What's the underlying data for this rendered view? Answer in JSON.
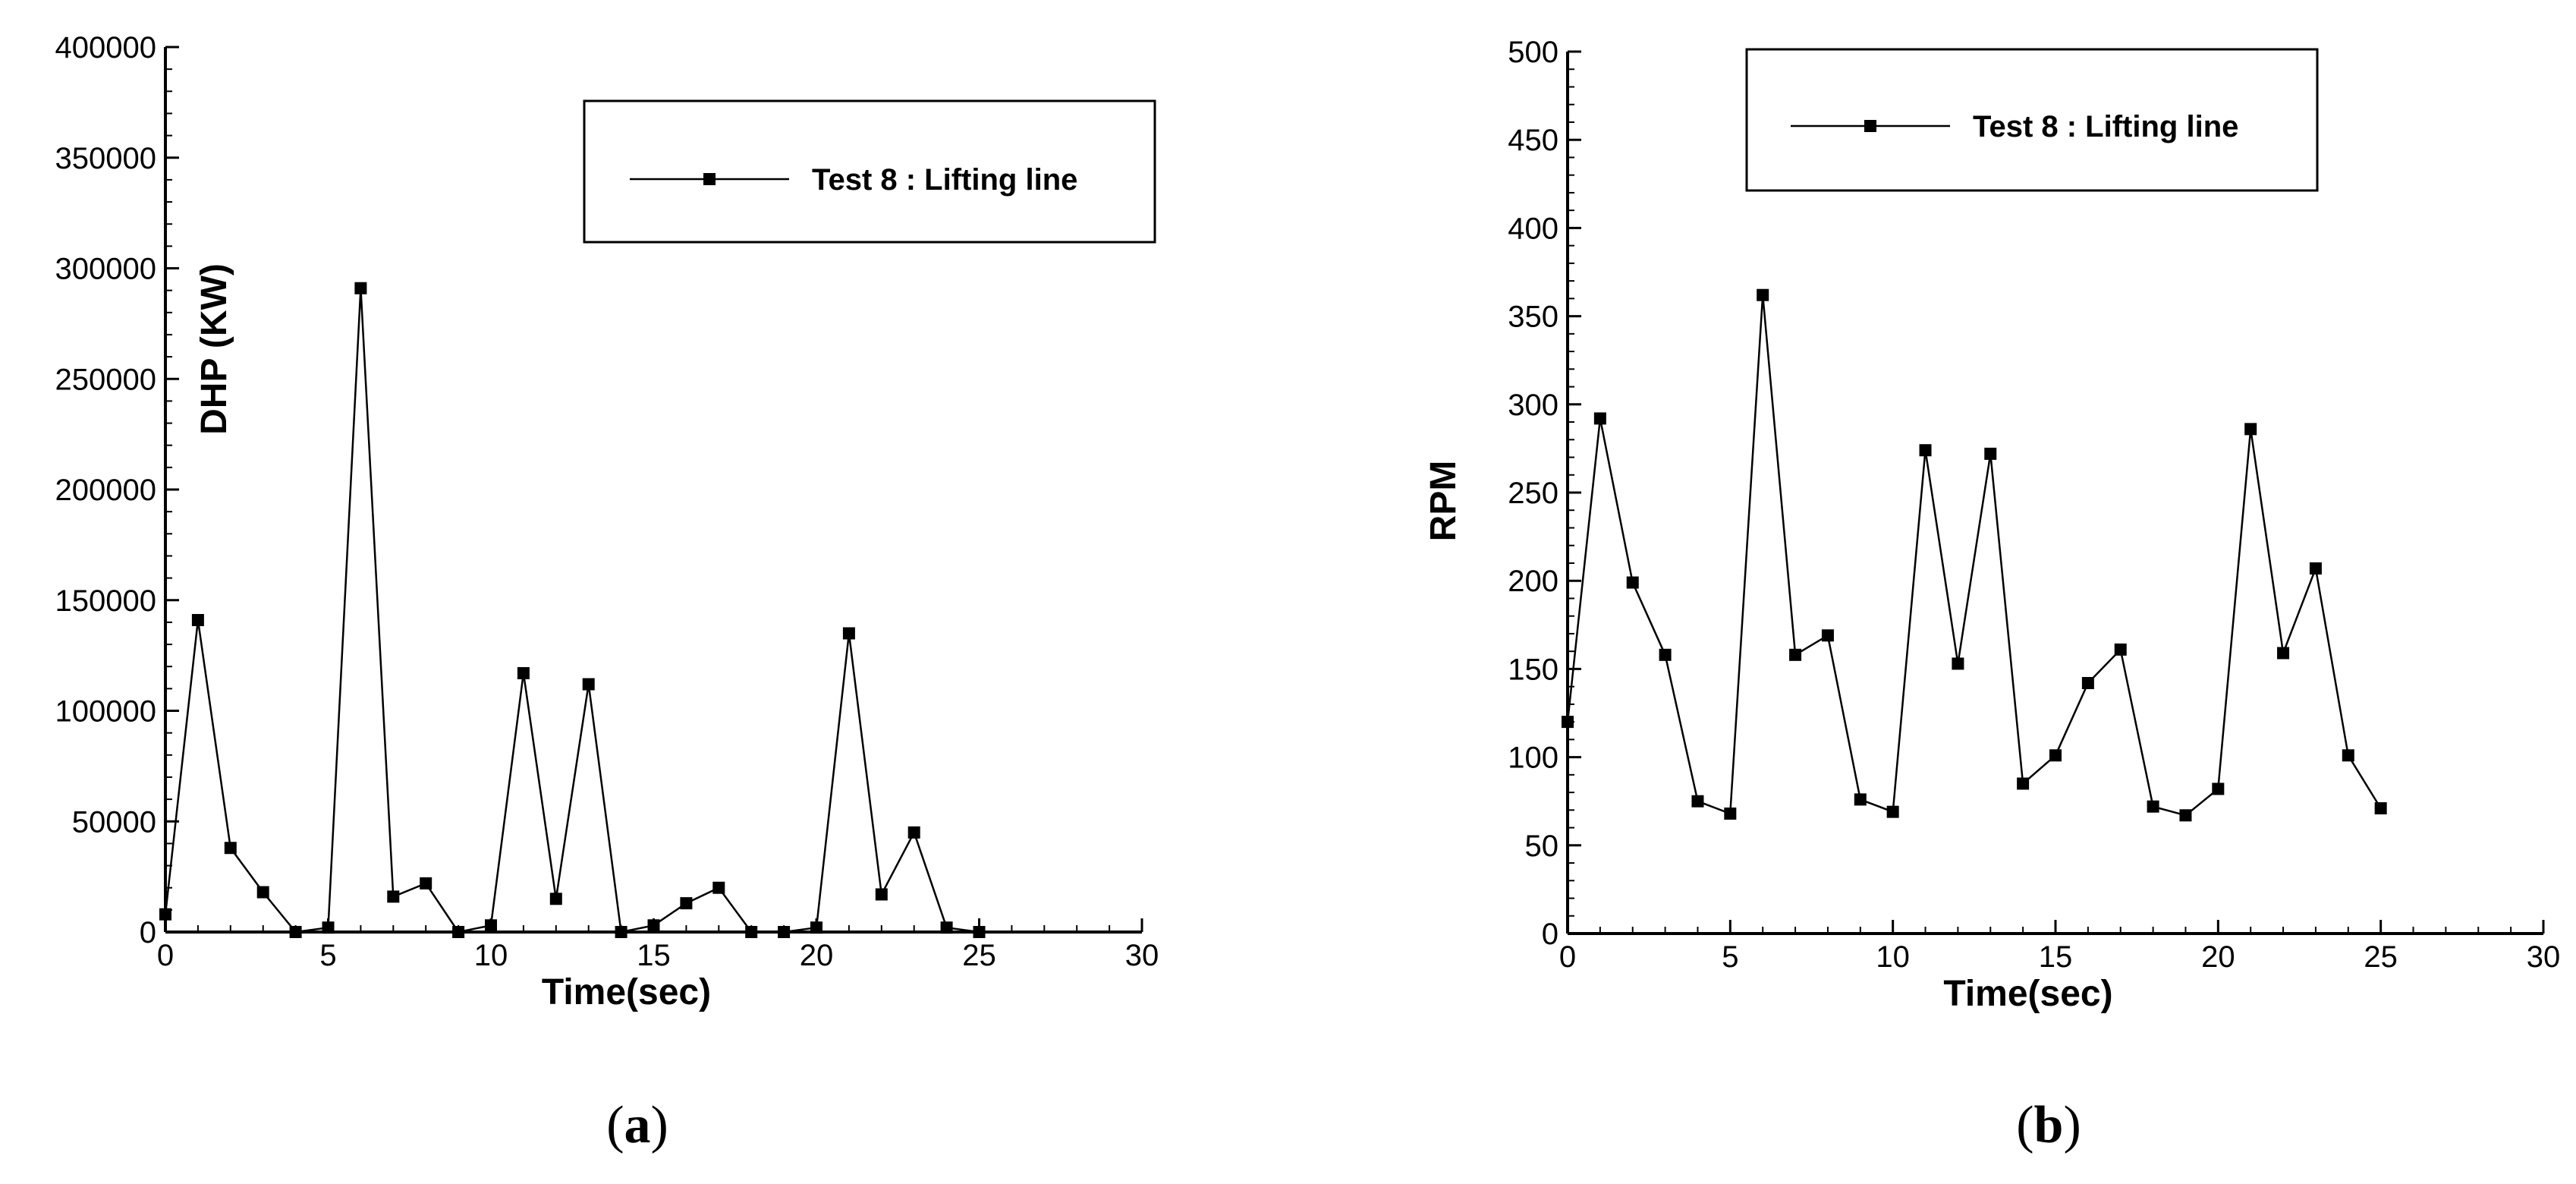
{
  "figure": {
    "panel_labels": [
      {
        "open": "(",
        "letter": "a",
        "close": ")"
      },
      {
        "open": "(",
        "letter": "b",
        "close": ")"
      }
    ]
  },
  "chart_data": [
    {
      "type": "line",
      "title": "",
      "xlabel": "Time(sec)",
      "ylabel": "DHP (KW)",
      "xlim": [
        0,
        30
      ],
      "ylim": [
        0,
        400000
      ],
      "xticks": [
        0,
        5,
        10,
        15,
        20,
        25,
        30
      ],
      "yticks": [
        0,
        50000,
        100000,
        150000,
        200000,
        250000,
        300000,
        350000,
        400000
      ],
      "grid": false,
      "legend": {
        "position": "top-right",
        "entries": [
          "Test 8 : Lifting line"
        ]
      },
      "series": [
        {
          "name": "Test 8 : Lifting line",
          "marker": "square",
          "color": "#000000",
          "x": [
            0,
            1,
            2,
            3,
            4,
            5,
            6,
            7,
            8,
            9,
            10,
            11,
            12,
            13,
            14,
            15,
            16,
            17,
            18,
            19,
            20,
            21,
            22,
            23,
            24,
            25
          ],
          "y": [
            8000,
            141000,
            38000,
            18000,
            0,
            2000,
            291000,
            16000,
            22000,
            0,
            3000,
            117000,
            15000,
            112000,
            0,
            3000,
            13000,
            20000,
            0,
            0,
            2000,
            135000,
            17000,
            45000,
            2000,
            0
          ]
        }
      ]
    },
    {
      "type": "line",
      "title": "",
      "xlabel": "Time(sec)",
      "ylabel": "RPM",
      "xlim": [
        0,
        30
      ],
      "ylim": [
        0,
        500
      ],
      "xticks": [
        0,
        5,
        10,
        15,
        20,
        25,
        30
      ],
      "yticks": [
        0,
        50,
        100,
        150,
        200,
        250,
        300,
        350,
        400,
        450,
        500
      ],
      "grid": false,
      "legend": {
        "position": "top-right",
        "entries": [
          "Test 8 : Lifting line"
        ]
      },
      "series": [
        {
          "name": "Test 8 : Lifting line",
          "marker": "square",
          "color": "#000000",
          "x": [
            0,
            1,
            2,
            3,
            4,
            5,
            6,
            7,
            8,
            9,
            10,
            11,
            12,
            13,
            14,
            15,
            16,
            17,
            18,
            19,
            20,
            21,
            22,
            23,
            24,
            25
          ],
          "y": [
            120,
            292,
            199,
            158,
            75,
            68,
            362,
            158,
            169,
            76,
            69,
            274,
            153,
            272,
            85,
            101,
            142,
            161,
            72,
            67,
            82,
            286,
            159,
            207,
            101,
            71
          ]
        }
      ]
    }
  ]
}
